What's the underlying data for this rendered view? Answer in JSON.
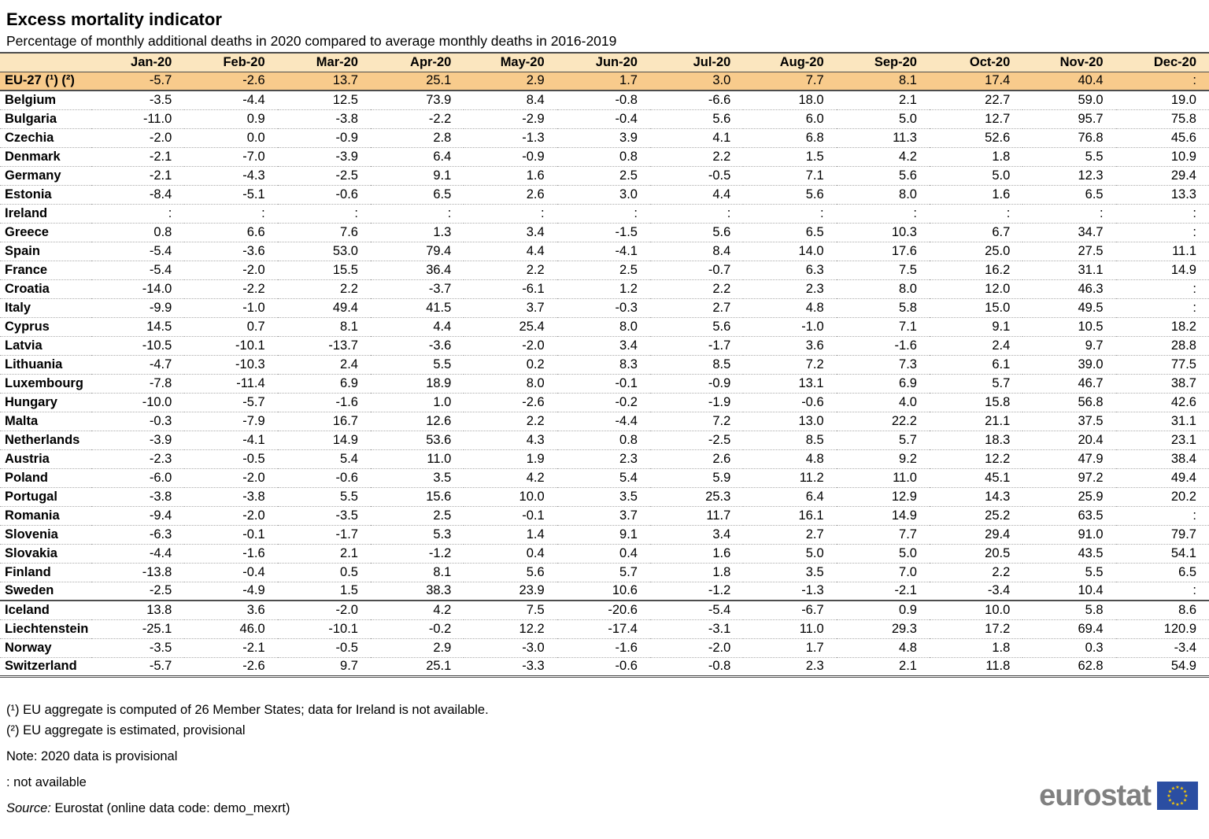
{
  "header": {
    "title": "Excess mortality indicator",
    "subtitle": "Percentage of monthly additional deaths in 2020 compared to average monthly deaths in 2016-2019"
  },
  "chart_data": {
    "type": "table",
    "title": "Excess mortality indicator",
    "subtitle": "Percentage of monthly additional deaths in 2020 compared to average monthly deaths in 2016-2019",
    "columns": [
      "Jan-20",
      "Feb-20",
      "Mar-20",
      "Apr-20",
      "May-20",
      "Jun-20",
      "Jul-20",
      "Aug-20",
      "Sep-20",
      "Oct-20",
      "Nov-20",
      "Dec-20"
    ],
    "not_available_symbol": ":",
    "rows": [
      {
        "label": "EU-27 (¹) (²)",
        "style": "eu",
        "values": [
          "-5.7",
          "-2.6",
          "13.7",
          "25.1",
          "2.9",
          "1.7",
          "3.0",
          "7.7",
          "8.1",
          "17.4",
          "40.4",
          ":"
        ]
      },
      {
        "label": "Belgium",
        "style": "",
        "values": [
          "-3.5",
          "-4.4",
          "12.5",
          "73.9",
          "8.4",
          "-0.8",
          "-6.6",
          "18.0",
          "2.1",
          "22.7",
          "59.0",
          "19.0"
        ]
      },
      {
        "label": "Bulgaria",
        "style": "",
        "values": [
          "-11.0",
          "0.9",
          "-3.8",
          "-2.2",
          "-2.9",
          "-0.4",
          "5.6",
          "6.0",
          "5.0",
          "12.7",
          "95.7",
          "75.8"
        ]
      },
      {
        "label": "Czechia",
        "style": "",
        "values": [
          "-2.0",
          "0.0",
          "-0.9",
          "2.8",
          "-1.3",
          "3.9",
          "4.1",
          "6.8",
          "11.3",
          "52.6",
          "76.8",
          "45.6"
        ]
      },
      {
        "label": "Denmark",
        "style": "",
        "values": [
          "-2.1",
          "-7.0",
          "-3.9",
          "6.4",
          "-0.9",
          "0.8",
          "2.2",
          "1.5",
          "4.2",
          "1.8",
          "5.5",
          "10.9"
        ]
      },
      {
        "label": "Germany",
        "style": "",
        "values": [
          "-2.1",
          "-4.3",
          "-2.5",
          "9.1",
          "1.6",
          "2.5",
          "-0.5",
          "7.1",
          "5.6",
          "5.0",
          "12.3",
          "29.4"
        ]
      },
      {
        "label": "Estonia",
        "style": "",
        "values": [
          "-8.4",
          "-5.1",
          "-0.6",
          "6.5",
          "2.6",
          "3.0",
          "4.4",
          "5.6",
          "8.0",
          "1.6",
          "6.5",
          "13.3"
        ]
      },
      {
        "label": "Ireland",
        "style": "",
        "values": [
          ":",
          ":",
          ":",
          ":",
          ":",
          ":",
          ":",
          ":",
          ":",
          ":",
          ":",
          ":"
        ]
      },
      {
        "label": "Greece",
        "style": "",
        "values": [
          "0.8",
          "6.6",
          "7.6",
          "1.3",
          "3.4",
          "-1.5",
          "5.6",
          "6.5",
          "10.3",
          "6.7",
          "34.7",
          ":"
        ]
      },
      {
        "label": "Spain",
        "style": "",
        "values": [
          "-5.4",
          "-3.6",
          "53.0",
          "79.4",
          "4.4",
          "-4.1",
          "8.4",
          "14.0",
          "17.6",
          "25.0",
          "27.5",
          "11.1"
        ]
      },
      {
        "label": "France",
        "style": "",
        "values": [
          "-5.4",
          "-2.0",
          "15.5",
          "36.4",
          "2.2",
          "2.5",
          "-0.7",
          "6.3",
          "7.5",
          "16.2",
          "31.1",
          "14.9"
        ]
      },
      {
        "label": "Croatia",
        "style": "",
        "values": [
          "-14.0",
          "-2.2",
          "2.2",
          "-3.7",
          "-6.1",
          "1.2",
          "2.2",
          "2.3",
          "8.0",
          "12.0",
          "46.3",
          ":"
        ]
      },
      {
        "label": "Italy",
        "style": "",
        "values": [
          "-9.9",
          "-1.0",
          "49.4",
          "41.5",
          "3.7",
          "-0.3",
          "2.7",
          "4.8",
          "5.8",
          "15.0",
          "49.5",
          ":"
        ]
      },
      {
        "label": "Cyprus",
        "style": "",
        "values": [
          "14.5",
          "0.7",
          "8.1",
          "4.4",
          "25.4",
          "8.0",
          "5.6",
          "-1.0",
          "7.1",
          "9.1",
          "10.5",
          "18.2"
        ]
      },
      {
        "label": "Latvia",
        "style": "",
        "values": [
          "-10.5",
          "-10.1",
          "-13.7",
          "-3.6",
          "-2.0",
          "3.4",
          "-1.7",
          "3.6",
          "-1.6",
          "2.4",
          "9.7",
          "28.8"
        ]
      },
      {
        "label": "Lithuania",
        "style": "",
        "values": [
          "-4.7",
          "-10.3",
          "2.4",
          "5.5",
          "0.2",
          "8.3",
          "8.5",
          "7.2",
          "7.3",
          "6.1",
          "39.0",
          "77.5"
        ]
      },
      {
        "label": "Luxembourg",
        "style": "",
        "values": [
          "-7.8",
          "-11.4",
          "6.9",
          "18.9",
          "8.0",
          "-0.1",
          "-0.9",
          "13.1",
          "6.9",
          "5.7",
          "46.7",
          "38.7"
        ]
      },
      {
        "label": "Hungary",
        "style": "",
        "values": [
          "-10.0",
          "-5.7",
          "-1.6",
          "1.0",
          "-2.6",
          "-0.2",
          "-1.9",
          "-0.6",
          "4.0",
          "15.8",
          "56.8",
          "42.6"
        ]
      },
      {
        "label": "Malta",
        "style": "",
        "values": [
          "-0.3",
          "-7.9",
          "16.7",
          "12.6",
          "2.2",
          "-4.4",
          "7.2",
          "13.0",
          "22.2",
          "21.1",
          "37.5",
          "31.1"
        ]
      },
      {
        "label": "Netherlands",
        "style": "",
        "values": [
          "-3.9",
          "-4.1",
          "14.9",
          "53.6",
          "4.3",
          "0.8",
          "-2.5",
          "8.5",
          "5.7",
          "18.3",
          "20.4",
          "23.1"
        ]
      },
      {
        "label": "Austria",
        "style": "",
        "values": [
          "-2.3",
          "-0.5",
          "5.4",
          "11.0",
          "1.9",
          "2.3",
          "2.6",
          "4.8",
          "9.2",
          "12.2",
          "47.9",
          "38.4"
        ]
      },
      {
        "label": "Poland",
        "style": "",
        "values": [
          "-6.0",
          "-2.0",
          "-0.6",
          "3.5",
          "4.2",
          "5.4",
          "5.9",
          "11.2",
          "11.0",
          "45.1",
          "97.2",
          "49.4"
        ]
      },
      {
        "label": "Portugal",
        "style": "",
        "values": [
          "-3.8",
          "-3.8",
          "5.5",
          "15.6",
          "10.0",
          "3.5",
          "25.3",
          "6.4",
          "12.9",
          "14.3",
          "25.9",
          "20.2"
        ]
      },
      {
        "label": "Romania",
        "style": "",
        "values": [
          "-9.4",
          "-2.0",
          "-3.5",
          "2.5",
          "-0.1",
          "3.7",
          "11.7",
          "16.1",
          "14.9",
          "25.2",
          "63.5",
          ":"
        ]
      },
      {
        "label": "Slovenia",
        "style": "",
        "values": [
          "-6.3",
          "-0.1",
          "-1.7",
          "5.3",
          "1.4",
          "9.1",
          "3.4",
          "2.7",
          "7.7",
          "29.4",
          "91.0",
          "79.7"
        ]
      },
      {
        "label": "Slovakia",
        "style": "",
        "values": [
          "-4.4",
          "-1.6",
          "2.1",
          "-1.2",
          "0.4",
          "0.4",
          "1.6",
          "5.0",
          "5.0",
          "20.5",
          "43.5",
          "54.1"
        ]
      },
      {
        "label": "Finland",
        "style": "",
        "values": [
          "-13.8",
          "-0.4",
          "0.5",
          "8.1",
          "5.6",
          "5.7",
          "1.8",
          "3.5",
          "7.0",
          "2.2",
          "5.5",
          "6.5"
        ]
      },
      {
        "label": "Sweden",
        "style": "group-end",
        "values": [
          "-2.5",
          "-4.9",
          "1.5",
          "38.3",
          "23.9",
          "10.6",
          "-1.2",
          "-1.3",
          "-2.1",
          "-3.4",
          "10.4",
          ":"
        ]
      },
      {
        "label": "Iceland",
        "style": "",
        "values": [
          "13.8",
          "3.6",
          "-2.0",
          "4.2",
          "7.5",
          "-20.6",
          "-5.4",
          "-6.7",
          "0.9",
          "10.0",
          "5.8",
          "8.6"
        ]
      },
      {
        "label": "Liechtenstein",
        "style": "",
        "values": [
          "-25.1",
          "46.0",
          "-10.1",
          "-0.2",
          "12.2",
          "-17.4",
          "-3.1",
          "11.0",
          "29.3",
          "17.2",
          "69.4",
          "120.9"
        ]
      },
      {
        "label": "Norway",
        "style": "",
        "values": [
          "-3.5",
          "-2.1",
          "-0.5",
          "2.9",
          "-3.0",
          "-1.6",
          "-2.0",
          "1.7",
          "4.8",
          "1.8",
          "0.3",
          "-3.4"
        ]
      },
      {
        "label": "Switzerland",
        "style": "table-end",
        "values": [
          "-5.7",
          "-2.6",
          "9.7",
          "25.1",
          "-3.3",
          "-0.6",
          "-0.8",
          "2.3",
          "2.1",
          "11.8",
          "62.8",
          "54.9"
        ]
      }
    ]
  },
  "footnotes": [
    "(¹) EU aggregate is computed of 26 Member States; data for Ireland is not available.",
    "(²) EU aggregate is estimated, provisional",
    "Note: 2020 data is provisional",
    ": not available"
  ],
  "source": {
    "label": "Source:",
    "text": " Eurostat (online data code: demo_mexrt)"
  },
  "logo": {
    "text": "eurostat"
  },
  "colors": {
    "header_bg": "#FBE6BF",
    "eu_row_bg": "#F8CB8C",
    "border_dark": "#4D4D4D",
    "row_divider": "#ABABAB",
    "flag_blue": "#2B4EA2",
    "star_yellow": "#FFCC00",
    "logo_gray": "#808080"
  }
}
